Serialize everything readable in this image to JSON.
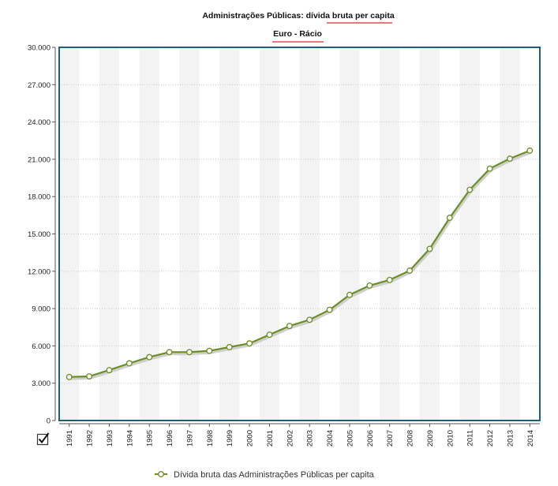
{
  "chart_data": {
    "type": "line",
    "title": "Administrações Públicas: dívida bruta per capita",
    "title_prefix": "Administrações Públicas: ",
    "title_highlight": "dívida bruta per capita",
    "subtitle_prefix": "Euro - ",
    "subtitle_highlight": "Rácio",
    "xlabel": "",
    "ylabel": "",
    "ylim": [
      0,
      30000
    ],
    "yticks": [
      0,
      3000,
      6000,
      9000,
      12000,
      15000,
      18000,
      21000,
      24000,
      27000,
      30000
    ],
    "ytick_labels": [
      "0",
      "3.000",
      "6.000",
      "9.000",
      "12.000",
      "15.000",
      "18.000",
      "21.000",
      "24.000",
      "27.000",
      "30.000"
    ],
    "categories": [
      "1991",
      "1992",
      "1993",
      "1994",
      "1995",
      "1996",
      "1997",
      "1998",
      "1999",
      "2000",
      "2001",
      "2002",
      "2003",
      "2004",
      "2005",
      "2006",
      "2007",
      "2008",
      "2009",
      "2010",
      "2011",
      "2012",
      "2013",
      "2014"
    ],
    "series": [
      {
        "name": "Dívida bruta das Administrações Públicas per capita",
        "color": "#6b8e23",
        "values": [
          3500,
          3550,
          4050,
          4600,
          5100,
          5500,
          5500,
          5600,
          5900,
          6200,
          6900,
          7600,
          8100,
          8900,
          10100,
          10850,
          11300,
          12050,
          13800,
          16300,
          18550,
          20250,
          21050,
          21700
        ]
      }
    ],
    "grid": true,
    "legend_position": "bottom",
    "colors": {
      "frame": "#1f5f7a",
      "band": "#f3f3f3",
      "highlight_underline": "#e74c4c",
      "line": "#6b8e23"
    }
  },
  "ui": {
    "checkbox_icon": "checkmark-box-icon",
    "checkbox_checked": true
  }
}
